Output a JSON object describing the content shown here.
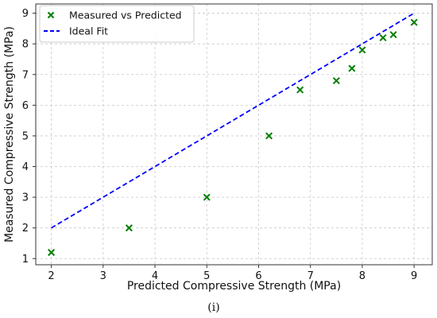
{
  "chart_data": {
    "type": "scatter",
    "title": "",
    "xlabel": "Predicted Compressive Strength (MPa)",
    "ylabel": "Measured Compressive Strength (MPa)",
    "xlim": [
      1.7,
      9.35
    ],
    "ylim": [
      0.8,
      9.3
    ],
    "xticks": [
      2,
      3,
      4,
      5,
      6,
      7,
      8,
      9
    ],
    "yticks": [
      1,
      2,
      3,
      4,
      5,
      6,
      7,
      8,
      9
    ],
    "grid": true,
    "legend_position": "top-left",
    "series": [
      {
        "name": "Measured vs Predicted",
        "kind": "scatter",
        "marker": "x",
        "color": "#008000",
        "points": [
          {
            "x": 2.0,
            "y": 1.2
          },
          {
            "x": 3.5,
            "y": 2.0
          },
          {
            "x": 5.0,
            "y": 3.0
          },
          {
            "x": 6.2,
            "y": 5.0
          },
          {
            "x": 6.8,
            "y": 6.5
          },
          {
            "x": 7.5,
            "y": 6.8
          },
          {
            "x": 7.8,
            "y": 7.2
          },
          {
            "x": 8.0,
            "y": 7.8
          },
          {
            "x": 8.4,
            "y": 8.2
          },
          {
            "x": 8.6,
            "y": 8.3
          },
          {
            "x": 9.0,
            "y": 8.7
          }
        ]
      },
      {
        "name": "Ideal Fit",
        "kind": "line",
        "style": "dashed",
        "color": "#0000ff",
        "points": [
          {
            "x": 2,
            "y": 2
          },
          {
            "x": 9,
            "y": 9
          }
        ]
      }
    ]
  },
  "caption": "(i)"
}
